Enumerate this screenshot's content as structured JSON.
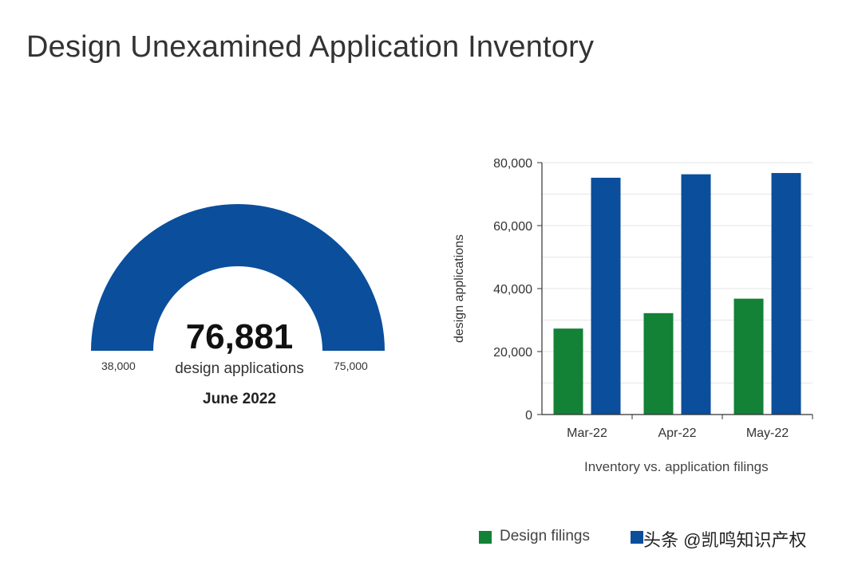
{
  "title": "Design Unexamined Application Inventory",
  "gauge": {
    "value": 76881,
    "value_label": "76,881",
    "unit_label": "design applications",
    "date_label": "June 2022",
    "min_label": "38,000",
    "max_label": "75,000",
    "color": "#0b4e9c"
  },
  "chart_data": {
    "type": "bar",
    "categories": [
      "Mar-22",
      "Apr-22",
      "May-22"
    ],
    "series": [
      {
        "name": "Design filings",
        "color": "#138136",
        "values": [
          27300,
          32200,
          36800
        ]
      },
      {
        "name": "",
        "color": "#0b4e9c",
        "values": [
          75200,
          76300,
          76700
        ]
      }
    ],
    "ylabel": "design applications",
    "xlabel": "Inventory vs. application filings",
    "ylim": [
      0,
      80000
    ],
    "yticks": [
      0,
      20000,
      40000,
      60000,
      80000
    ],
    "ytick_labels": [
      "0",
      "20,000",
      "40,000",
      "60,000",
      "80,000"
    ],
    "grid": true,
    "legend_position": "bottom"
  },
  "legend": [
    {
      "label": "Design filings",
      "color": "#138136"
    },
    {
      "label": "",
      "color": "#0b4e9c"
    }
  ],
  "watermark": "头条 @凯鸣知识产权"
}
